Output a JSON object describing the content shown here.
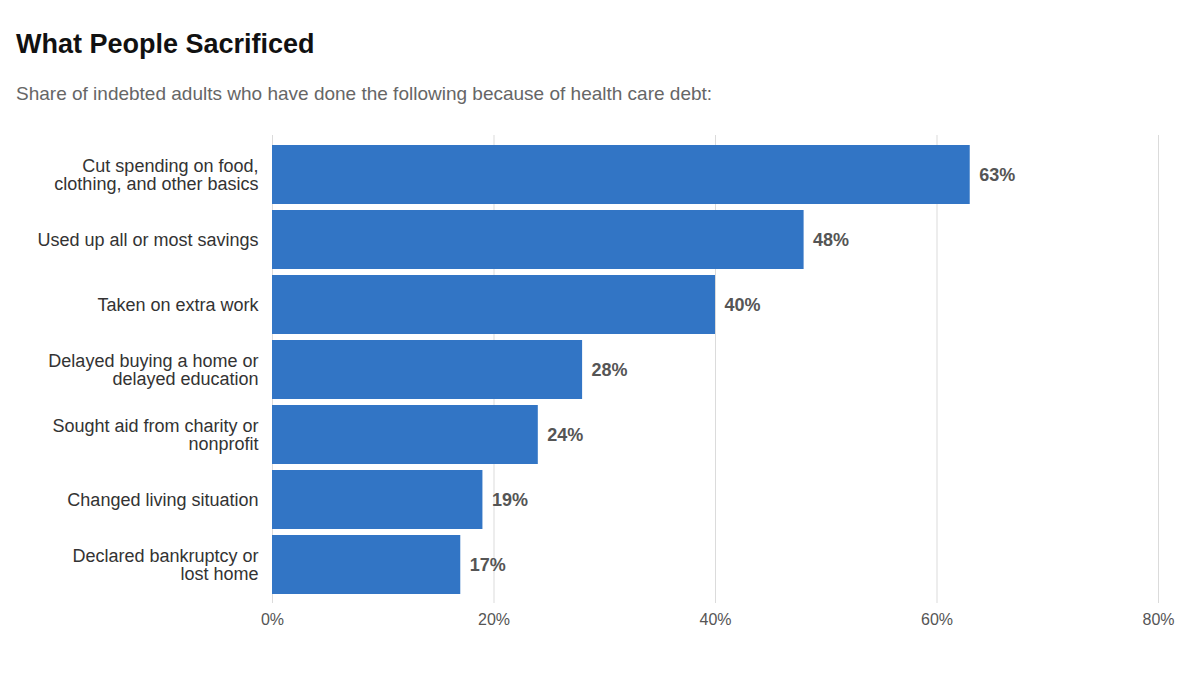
{
  "chart_data": {
    "type": "bar",
    "orientation": "horizontal",
    "title": "What People Sacrificed",
    "subtitle": "Share of indebted adults who have done the following because of health care debt:",
    "categories": [
      "Cut spending on food,\nclothing, and other basics",
      "Used up all or most savings",
      "Taken on extra work",
      "Delayed buying a home or\ndelayed education",
      "Sought aid from charity or\nnonprofit",
      "Changed living situation",
      "Declared bankruptcy or\nlost home"
    ],
    "values": [
      63,
      48,
      40,
      28,
      24,
      19,
      17
    ],
    "value_labels": [
      "63%",
      "48%",
      "40%",
      "28%",
      "24%",
      "19%",
      "17%"
    ],
    "data_labels": true,
    "color": "#3275c5",
    "xlim": [
      0,
      80
    ],
    "xticks": [
      {
        "value": 0,
        "label": "0%"
      },
      {
        "value": 20,
        "label": "20%"
      },
      {
        "value": 40,
        "label": "40%"
      },
      {
        "value": 60,
        "label": "60%"
      },
      {
        "value": 80,
        "label": "80%"
      }
    ],
    "grid": true
  }
}
